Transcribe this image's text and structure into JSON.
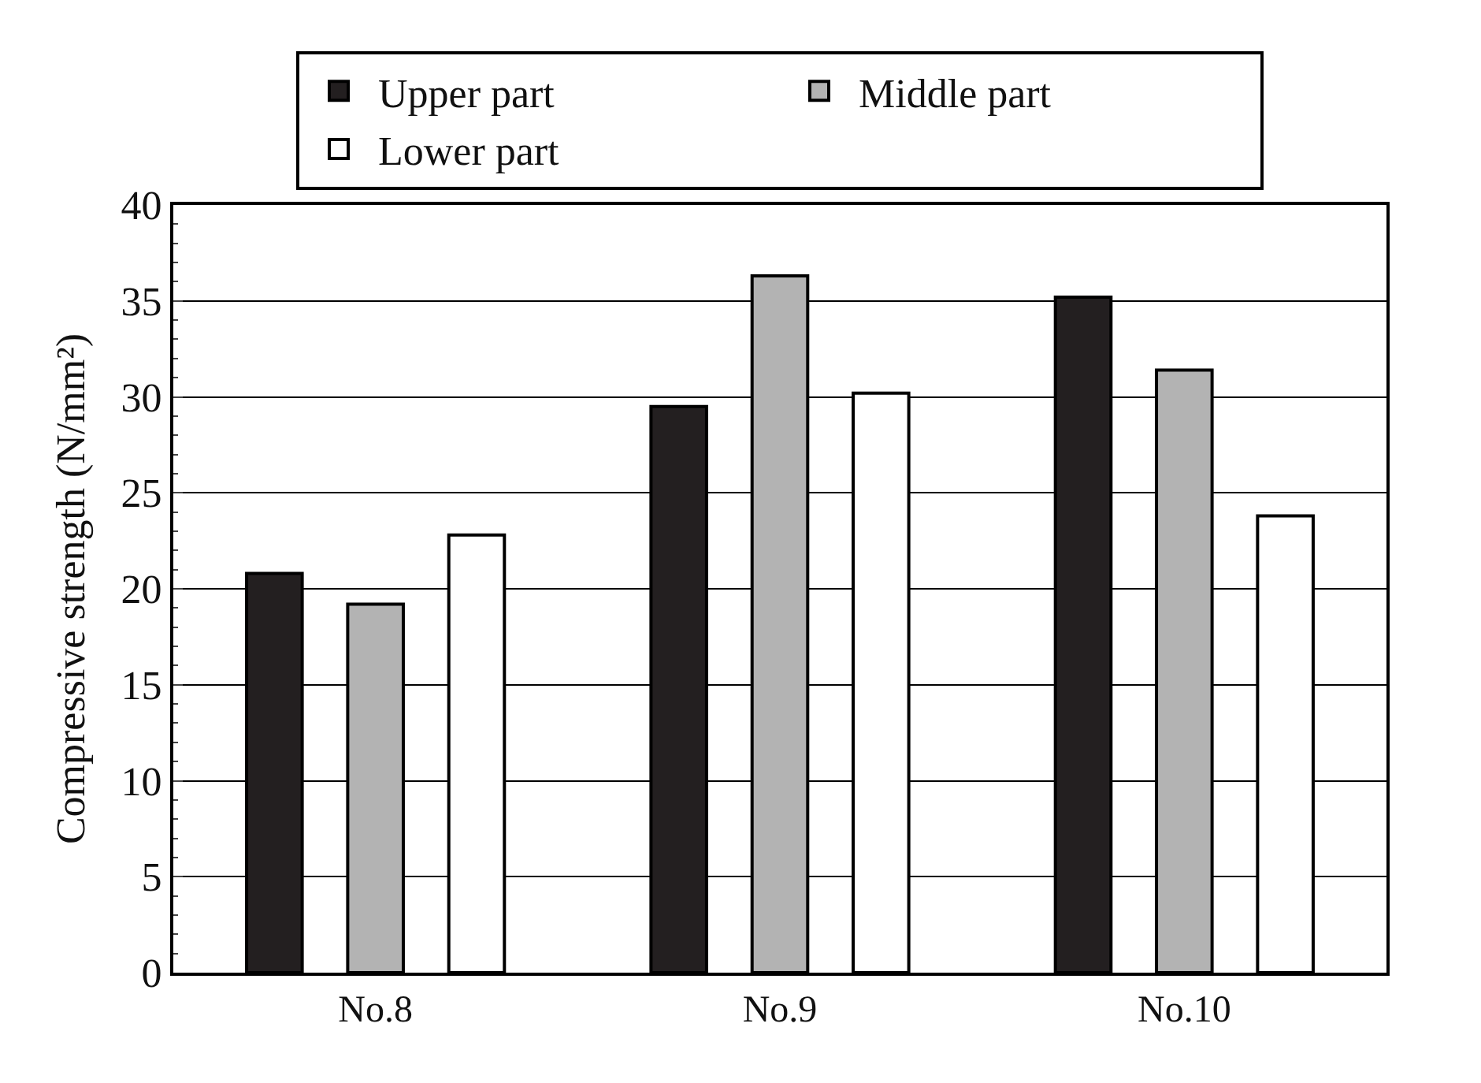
{
  "chart_data": {
    "type": "bar",
    "ylabel": "Compressive strength (N/mm²)",
    "categories": [
      "No.8",
      "No.9",
      "No.10"
    ],
    "series": [
      {
        "name": "Upper part",
        "color": "#231f20",
        "values": [
          20.8,
          29.5,
          35.2
        ]
      },
      {
        "name": "Middle part",
        "color": "#b3b3b3",
        "values": [
          19.2,
          36.3,
          31.4
        ]
      },
      {
        "name": "Lower part",
        "color": "#ffffff",
        "values": [
          22.8,
          30.2,
          23.8
        ]
      }
    ],
    "ylim": [
      0,
      40
    ],
    "yticks": [
      0,
      5,
      10,
      15,
      20,
      25,
      30,
      35,
      40
    ],
    "grid": "y",
    "legend": "top"
  }
}
